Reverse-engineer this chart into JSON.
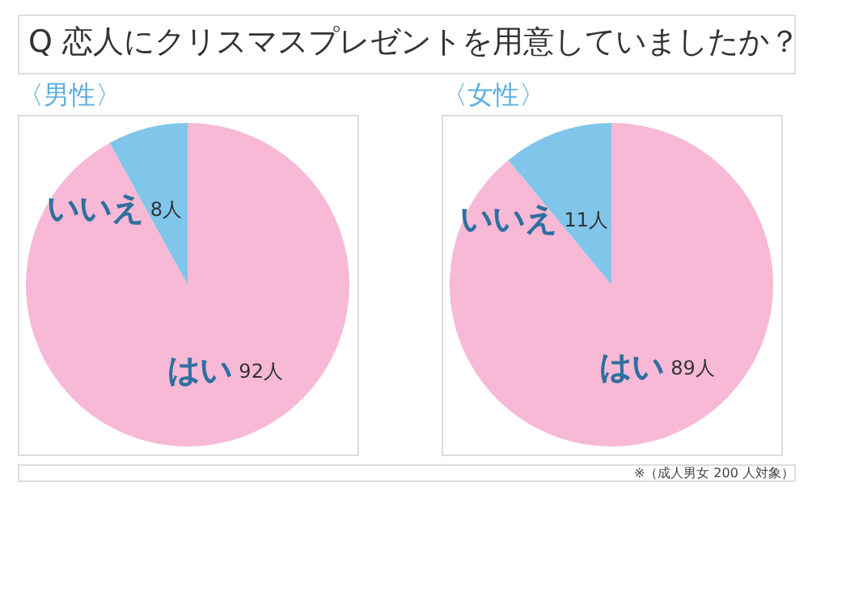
{
  "chart_data": [
    {
      "type": "pie",
      "title": "Q 恋人にクリスマスプレゼントを用意していましたか？",
      "subtitle": "〈男性〉",
      "categories": [
        "はい",
        "いいえ"
      ],
      "values": [
        92,
        8
      ],
      "value_labels": [
        "92人",
        "8人"
      ],
      "colors": [
        "#f7b9d5",
        "#80c5ea"
      ]
    },
    {
      "type": "pie",
      "subtitle": "〈女性〉",
      "categories": [
        "はい",
        "いいえ"
      ],
      "values": [
        89,
        11
      ],
      "value_labels": [
        "89人",
        "11人"
      ],
      "colors": [
        "#f7b9d5",
        "#80c5ea"
      ],
      "annotations": [
        "※（成人男女 200 人対象）"
      ]
    }
  ]
}
